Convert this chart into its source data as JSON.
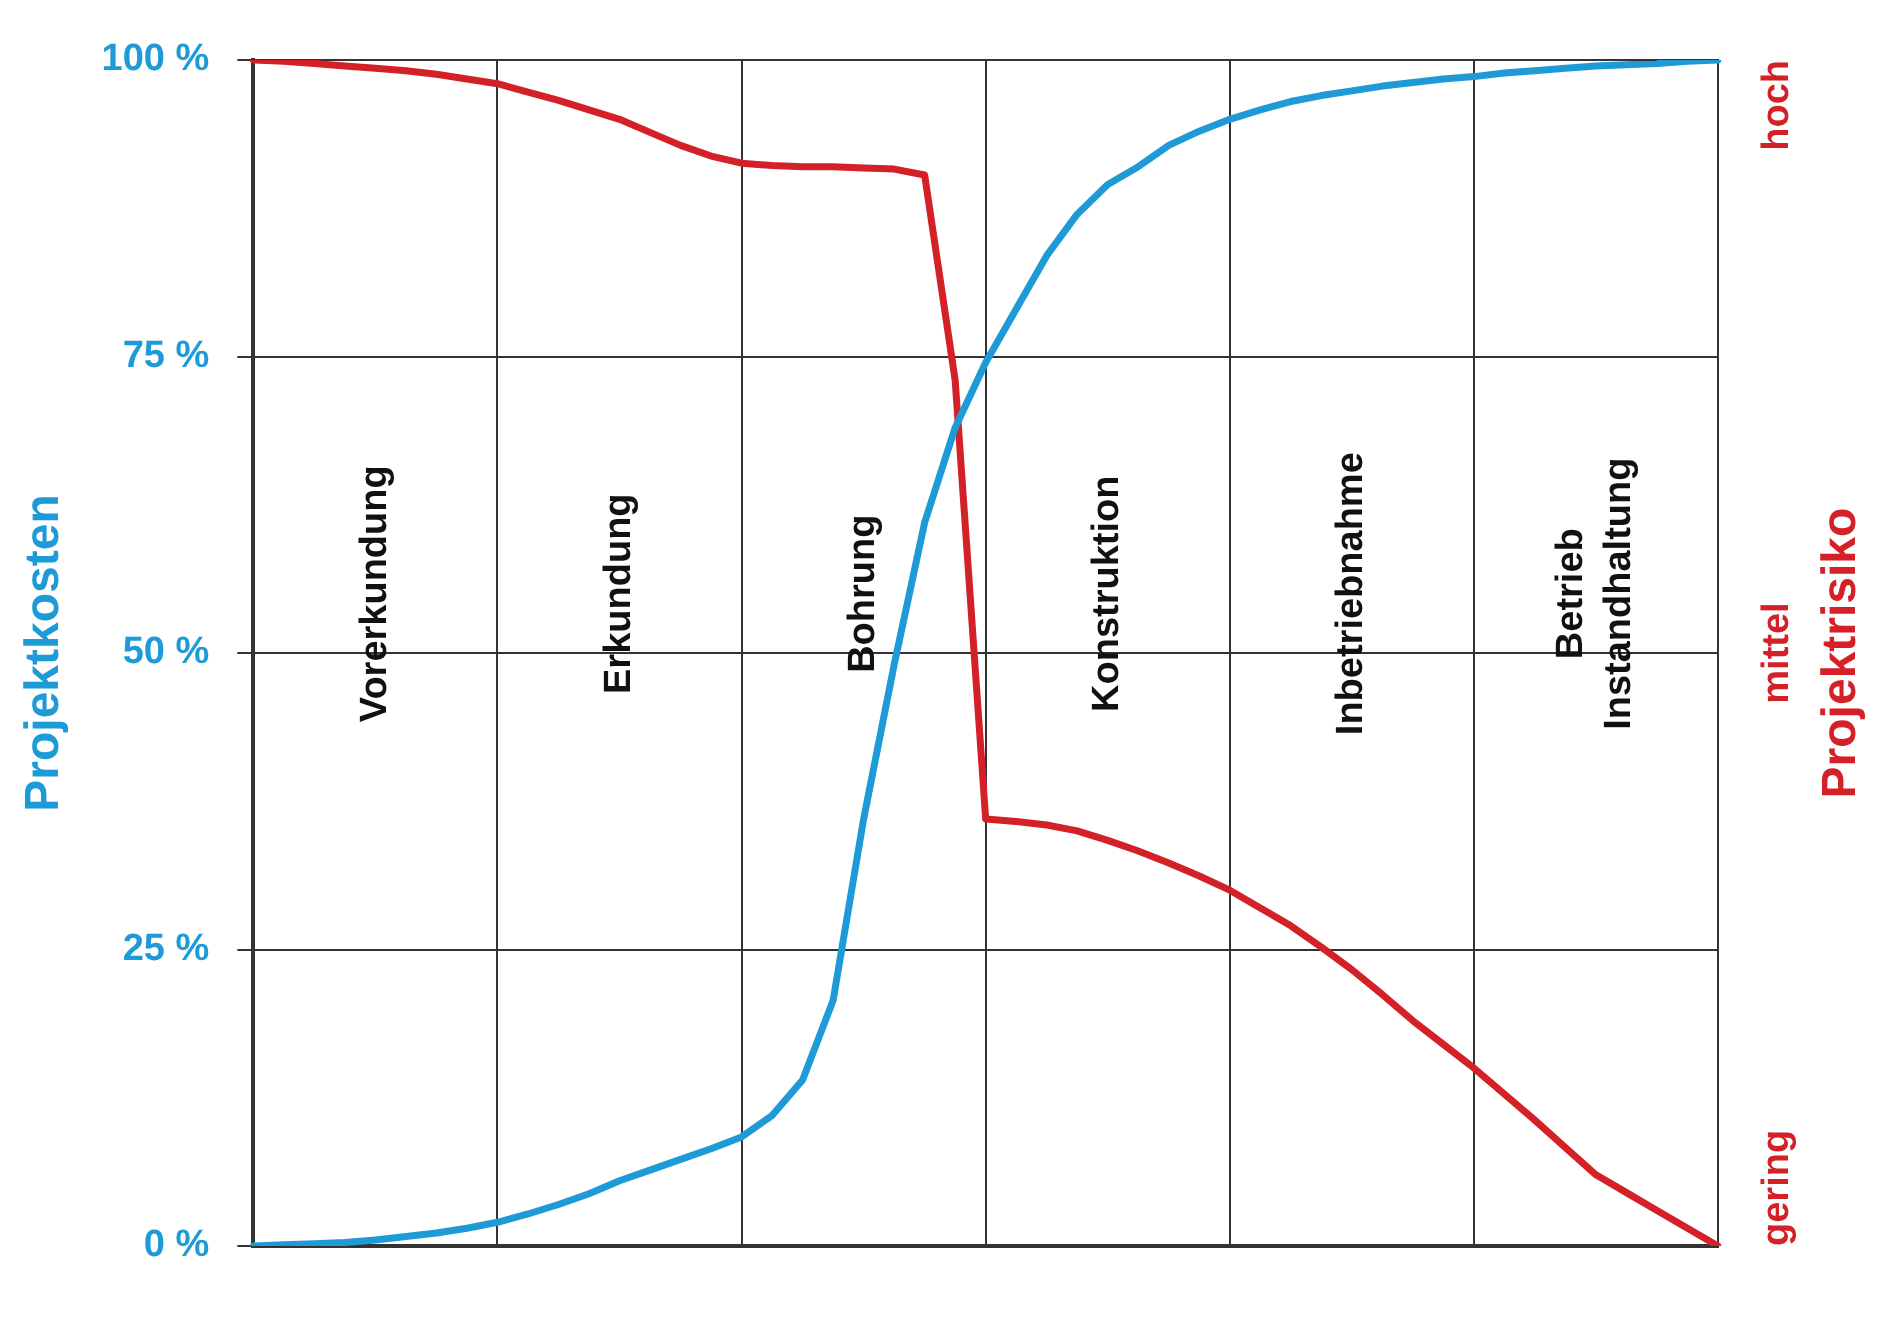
{
  "chart_data": {
    "type": "line",
    "ylabel": "Projektkosten",
    "y2label": "Projektrisiko",
    "categories": [
      null,
      null,
      null,
      null,
      null,
      null,
      null,
      null,
      null,
      null,
      null,
      null,
      null,
      null,
      null,
      null,
      null,
      null,
      null,
      null,
      null,
      null,
      null,
      null,
      null,
      null,
      null,
      null,
      null,
      null,
      null,
      null,
      null,
      null,
      null,
      null,
      null,
      null,
      null,
      null,
      null,
      null,
      null,
      null,
      null,
      null,
      null,
      null,
      null
    ],
    "ylim": [
      0,
      100
    ],
    "yticks": [
      {
        "value": 0,
        "label": "0 %"
      },
      {
        "value": 25,
        "label": "25 %"
      },
      {
        "value": 50,
        "label": "50 %"
      },
      {
        "value": 75,
        "label": "75 %"
      },
      {
        "value": 100,
        "label": "100 %"
      }
    ],
    "grid": true,
    "legend": false,
    "marker": "none",
    "line_style": "solid",
    "annotations": [
      "Vorerkundung",
      "Erkundung",
      "Bohrung",
      "Konstruktion",
      "Inbetriebnahme",
      "Betrieb Instandhaltung",
      "gering",
      "mittel",
      "hoch"
    ],
    "series": [
      {
        "color": "#1e9bd7",
        "values": [
          0,
          0.1,
          0.2,
          0.3,
          0.5,
          0.8,
          1.1,
          1.5,
          2,
          2.7,
          3.5,
          4.4,
          5.5,
          6.4,
          7.3,
          8.2,
          9.2,
          11,
          14,
          20.7,
          36,
          49,
          61,
          69,
          74.5,
          79,
          83.5,
          87,
          89.5,
          91,
          92.8,
          94,
          95,
          95.8,
          96.5,
          97,
          97.4,
          97.8,
          98.1,
          98.4,
          98.6,
          98.9,
          99.1,
          99.3,
          99.5,
          99.6,
          99.7,
          99.9,
          100
        ]
      },
      {
        "color": "#d42027",
        "values": [
          100,
          99.9,
          99.7,
          99.5,
          99.3,
          99.1,
          98.8,
          98.4,
          98,
          97.3,
          96.6,
          95.8,
          95,
          93.9,
          92.8,
          91.9,
          91.3,
          91.1,
          91,
          91,
          90.9,
          90.8,
          90.3,
          73,
          36,
          35.8,
          35.5,
          35,
          34.2,
          33.3,
          32.3,
          31.2,
          30,
          28.5,
          27,
          25.2,
          23.3,
          21.2,
          19,
          17,
          15,
          12.8,
          10.6,
          8.3,
          6,
          4.5,
          3,
          1.5,
          0
        ]
      }
    ]
  }
}
